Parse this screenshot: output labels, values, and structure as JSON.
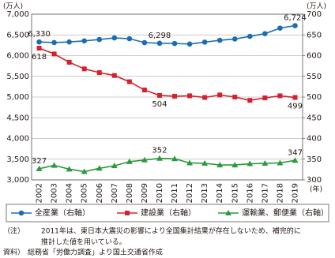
{
  "chart_data": {
    "type": "line",
    "y_unit": "(万人)",
    "y2_unit": "(万人)",
    "x_unit": "(年)",
    "categories": [
      "2002",
      "2003",
      "2004",
      "2005",
      "2006",
      "2007",
      "2008",
      "2009",
      "2010",
      "2011",
      "2012",
      "2013",
      "2014",
      "2015",
      "2016",
      "2017",
      "2018",
      "2019"
    ],
    "ylim": [
      3000,
      7000
    ],
    "yticks": [
      {
        "value": 3000,
        "label": "3,000"
      },
      {
        "value": 3500,
        "label": "3,500"
      },
      {
        "value": 4000,
        "label": "4,000"
      },
      {
        "value": 4500,
        "label": "4,500"
      },
      {
        "value": 5000,
        "label": "5,000"
      },
      {
        "value": 5500,
        "label": "5,500"
      },
      {
        "value": 6000,
        "label": "6,000"
      },
      {
        "value": 6500,
        "label": "6,500"
      },
      {
        "value": 7000,
        "label": "7,000"
      }
    ],
    "y2lim": [
      300,
      700
    ],
    "y2ticks": [
      300,
      350,
      400,
      450,
      500,
      550,
      600,
      650,
      700
    ],
    "grid": true,
    "series": [
      {
        "name": "全産業（右軸）",
        "color": "#1b6db3",
        "marker": "circle",
        "axis": "y",
        "values": [
          6330,
          6316,
          6329,
          6356,
          6389,
          6427,
          6409,
          6314,
          6298,
          6293,
          6280,
          6326,
          6371,
          6401,
          6465,
          6530,
          6664,
          6724
        ],
        "value_labels": [
          "6,330",
          null,
          null,
          null,
          null,
          null,
          null,
          null,
          "6,298",
          null,
          null,
          null,
          null,
          null,
          null,
          null,
          null,
          "6,724"
        ]
      },
      {
        "name": "建設業（右軸）",
        "color": "#d5202e",
        "marker": "square",
        "axis": "y2",
        "values": [
          618,
          604,
          584,
          568,
          559,
          552,
          537,
          517,
          504,
          502,
          503,
          499,
          505,
          500,
          492,
          498,
          503,
          499
        ],
        "value_labels": [
          "618",
          null,
          null,
          null,
          null,
          null,
          null,
          null,
          "504",
          null,
          null,
          null,
          null,
          null,
          null,
          null,
          null,
          "499"
        ]
      },
      {
        "name": "運輸業、郵便業（右軸）",
        "color": "#2a9a3c",
        "marker": "triangle",
        "axis": "y2",
        "values": [
          327,
          335,
          326,
          320,
          328,
          334,
          344,
          348,
          352,
          351,
          341,
          340,
          336,
          336,
          339,
          340,
          341,
          347
        ],
        "value_labels": [
          "327",
          null,
          null,
          null,
          null,
          null,
          null,
          null,
          "352",
          null,
          null,
          null,
          null,
          null,
          null,
          null,
          null,
          "347"
        ]
      }
    ]
  },
  "note": {
    "label": "（注）",
    "lines": [
      "2011年は、東日本大震災の影響により全国集計結果が存在しないため、補完的に",
      "推計した値を用いている。"
    ]
  },
  "source": {
    "label": "資料）",
    "text": "総務省「労働力調査」より国土交通省作成"
  }
}
